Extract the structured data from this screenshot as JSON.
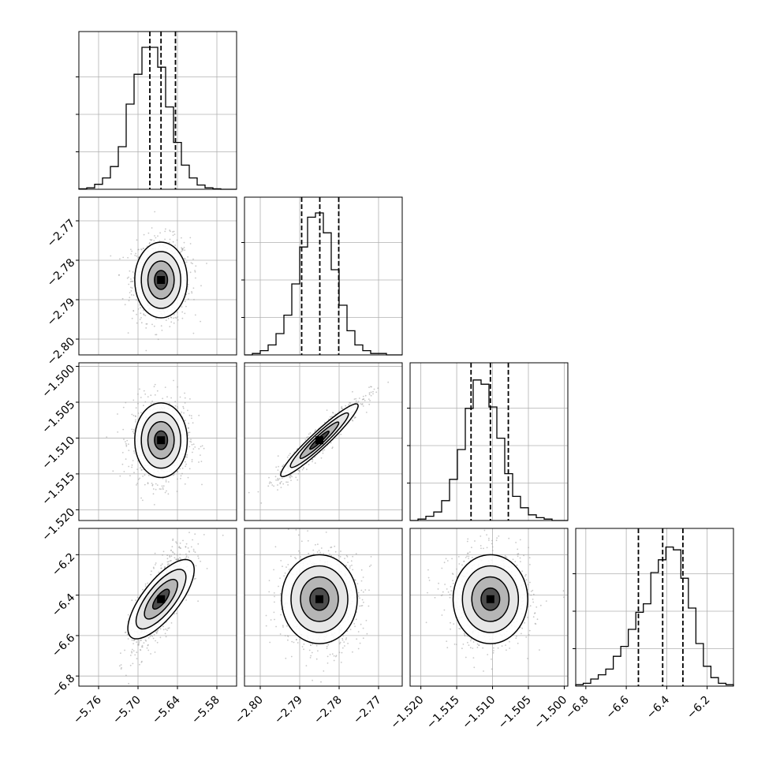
{
  "chart_data": {
    "type": "corner",
    "grid": true,
    "parameters": [
      {
        "range": [
          -5.79,
          -5.55
        ],
        "ticks": [
          -5.76,
          -5.7,
          -5.64,
          -5.58
        ],
        "tick_labels": [
          "−5.76",
          "−5.70",
          "−5.64",
          "−5.58"
        ],
        "quantiles": [
          -5.682,
          -5.665,
          -5.643
        ],
        "mean": -5.665,
        "sd": 0.02
      },
      {
        "range": [
          -2.804,
          -2.764
        ],
        "ticks": [
          -2.8,
          -2.79,
          -2.78,
          -2.77
        ],
        "tick_labels": [
          "−2.80",
          "−2.79",
          "−2.78",
          "−2.77"
        ],
        "quantiles": [
          -2.7895,
          -2.7849,
          -2.7801
        ],
        "mean": -2.785,
        "sd": 0.0048
      },
      {
        "range": [
          -1.5215,
          -1.4995
        ],
        "ticks": [
          -1.52,
          -1.515,
          -1.51,
          -1.505,
          -1.5
        ],
        "tick_labels": [
          "−1.520",
          "−1.515",
          "−1.510",
          "−1.505",
          "−1.500"
        ],
        "quantiles": [
          -1.513,
          -1.5103,
          -1.5078
        ],
        "mean": -1.5103,
        "sd": 0.0026
      },
      {
        "range": [
          -6.85,
          -6.07
        ],
        "ticks": [
          -6.8,
          -6.6,
          -6.4,
          -6.2
        ],
        "tick_labels": [
          "−6.8",
          "−6.6",
          "−6.4",
          "−6.2"
        ],
        "quantiles": [
          -6.54,
          -6.42,
          -6.32
        ],
        "mean": -6.42,
        "sd": 0.11
      }
    ],
    "correlations": {
      "1-0": 0.0,
      "2-0": 0.0,
      "2-1": 0.95,
      "3-0": 0.75,
      "3-1": 0.0,
      "3-2": 0.0
    },
    "histogram_density": {
      "param0": [
        0.003,
        0.01,
        0.035,
        0.08,
        0.16,
        0.3,
        0.6,
        0.81,
        1.0,
        1.0,
        0.86,
        0.58,
        0.33,
        0.17,
        0.08,
        0.03,
        0.01,
        0.003,
        0.0,
        0.0
      ],
      "param1": [
        0.0,
        0.01,
        0.03,
        0.07,
        0.15,
        0.28,
        0.5,
        0.76,
        0.97,
        1.0,
        0.86,
        0.6,
        0.35,
        0.17,
        0.07,
        0.03,
        0.01,
        0.01,
        0.0,
        0.0
      ],
      "param2": [
        0.0,
        0.01,
        0.03,
        0.06,
        0.14,
        0.29,
        0.5,
        0.79,
        0.99,
        0.96,
        0.8,
        0.58,
        0.33,
        0.17,
        0.09,
        0.04,
        0.02,
        0.01,
        0.0,
        0.0
      ],
      "param3": [
        0.01,
        0.02,
        0.05,
        0.08,
        0.12,
        0.21,
        0.28,
        0.4,
        0.52,
        0.58,
        0.8,
        0.89,
        0.98,
        0.96,
        0.76,
        0.55,
        0.3,
        0.14,
        0.06,
        0.02,
        0.01
      ]
    }
  }
}
